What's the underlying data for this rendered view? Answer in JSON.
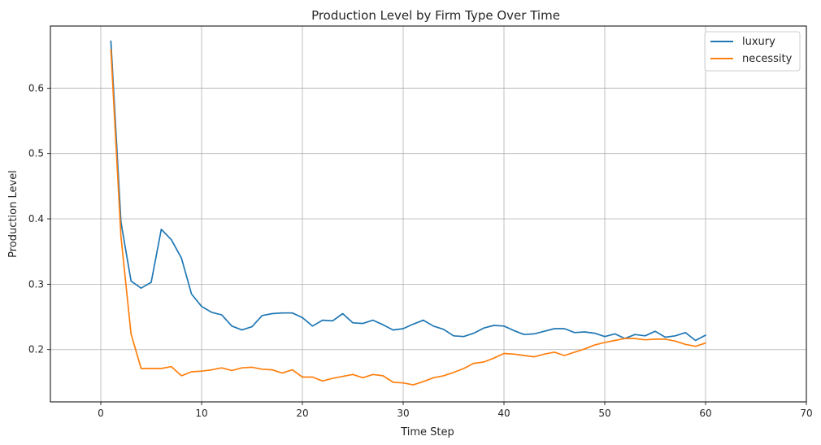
{
  "chart_data": {
    "type": "line",
    "title": "Production Level by Firm Type Over Time",
    "xlabel": "Time Step",
    "ylabel": "Production Level",
    "xlim": [
      -5,
      70
    ],
    "ylim": [
      0.12,
      0.695
    ],
    "xticks": [
      0,
      10,
      20,
      30,
      40,
      50,
      60,
      70
    ],
    "yticks": [
      0.2,
      0.3,
      0.4,
      0.5,
      0.6
    ],
    "ytick_labels": [
      "0.2",
      "0.3",
      "0.4",
      "0.5",
      "0.6"
    ],
    "grid": true,
    "legend_position": "top-right",
    "x": [
      1,
      2,
      3,
      4,
      5,
      6,
      7,
      8,
      9,
      10,
      11,
      12,
      13,
      14,
      15,
      16,
      17,
      18,
      19,
      20,
      21,
      22,
      23,
      24,
      25,
      26,
      27,
      28,
      29,
      30,
      31,
      32,
      33,
      34,
      35,
      36,
      37,
      38,
      39,
      40,
      41,
      42,
      43,
      44,
      45,
      46,
      47,
      48,
      49,
      50,
      51,
      52,
      53,
      54,
      55,
      56,
      57,
      58,
      59,
      60
    ],
    "series": [
      {
        "name": "luxury",
        "color": "#1f77b4",
        "values": [
          0.672,
          0.395,
          0.305,
          0.294,
          0.303,
          0.384,
          0.368,
          0.34,
          0.285,
          0.266,
          0.257,
          0.253,
          0.236,
          0.23,
          0.235,
          0.252,
          0.255,
          0.256,
          0.256,
          0.249,
          0.236,
          0.245,
          0.244,
          0.255,
          0.241,
          0.24,
          0.245,
          0.238,
          0.23,
          0.232,
          0.239,
          0.245,
          0.236,
          0.231,
          0.221,
          0.22,
          0.225,
          0.233,
          0.237,
          0.236,
          0.229,
          0.223,
          0.224,
          0.228,
          0.232,
          0.232,
          0.226,
          0.227,
          0.225,
          0.22,
          0.224,
          0.217,
          0.223,
          0.221,
          0.228,
          0.219,
          0.221,
          0.226,
          0.214,
          0.222
        ]
      },
      {
        "name": "necessity",
        "color": "#ff7f0e",
        "values": [
          0.659,
          0.373,
          0.224,
          0.171,
          0.171,
          0.171,
          0.174,
          0.16,
          0.166,
          0.167,
          0.169,
          0.172,
          0.168,
          0.172,
          0.173,
          0.17,
          0.169,
          0.164,
          0.169,
          0.158,
          0.158,
          0.152,
          0.156,
          0.159,
          0.162,
          0.157,
          0.162,
          0.16,
          0.15,
          0.149,
          0.146,
          0.151,
          0.157,
          0.16,
          0.165,
          0.171,
          0.179,
          0.181,
          0.187,
          0.194,
          0.193,
          0.191,
          0.189,
          0.193,
          0.196,
          0.191,
          0.196,
          0.201,
          0.207,
          0.211,
          0.214,
          0.217,
          0.217,
          0.215,
          0.216,
          0.216,
          0.213,
          0.208,
          0.205,
          0.21
        ]
      }
    ]
  }
}
